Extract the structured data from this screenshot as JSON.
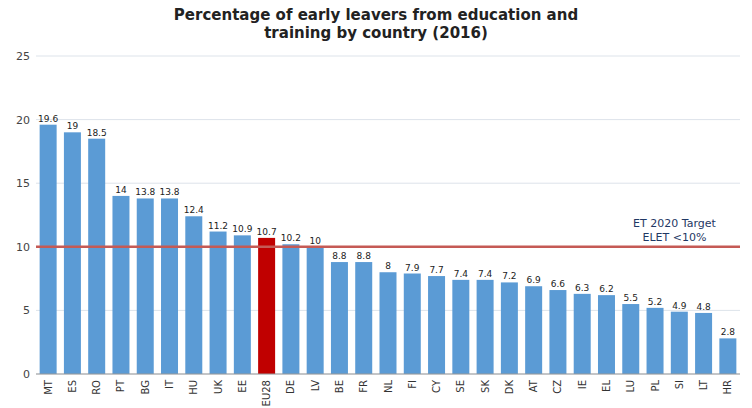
{
  "chart_data": {
    "type": "bar",
    "title": "Percentage of early leavers from education and\ntraining by country (2016)",
    "categories": [
      "MT",
      "ES",
      "RO",
      "PT",
      "BG",
      "IT",
      "HU",
      "UK",
      "EE",
      "EU28",
      "DE",
      "LV",
      "BE",
      "FR",
      "NL",
      "FI",
      "CY",
      "SE",
      "SK",
      "DK",
      "AT",
      "CZ",
      "IE",
      "EL",
      "LU",
      "PL",
      "SI",
      "LT",
      "HR"
    ],
    "values": [
      19.6,
      19.0,
      18.5,
      14.0,
      13.8,
      13.8,
      12.4,
      11.2,
      10.9,
      10.7,
      10.2,
      10.0,
      8.8,
      8.8,
      8.0,
      7.9,
      7.7,
      7.4,
      7.4,
      7.2,
      6.9,
      6.6,
      6.3,
      6.2,
      5.5,
      5.2,
      4.9,
      4.8,
      2.8
    ],
    "colors": [
      "#5B9BD5",
      "#5B9BD5",
      "#5B9BD5",
      "#5B9BD5",
      "#5B9BD5",
      "#5B9BD5",
      "#5B9BD5",
      "#5B9BD5",
      "#5B9BD5",
      "#C00000",
      "#5B9BD5",
      "#5B9BD5",
      "#5B9BD5",
      "#5B9BD5",
      "#5B9BD5",
      "#5B9BD5",
      "#5B9BD5",
      "#5B9BD5",
      "#5B9BD5",
      "#5B9BD5",
      "#5B9BD5",
      "#5B9BD5",
      "#5B9BD5",
      "#5B9BD5",
      "#5B9BD5",
      "#5B9BD5",
      "#5B9BD5",
      "#5B9BD5",
      "#5B9BD5"
    ],
    "ylim": [
      0,
      25
    ],
    "yticks": [
      0,
      5,
      10,
      15,
      20,
      25
    ],
    "grid": true,
    "data_labels": true,
    "annotations": [
      {
        "type": "hline",
        "value": 10.0,
        "color": "#C55A55",
        "label": [
          "ET 2020 Target",
          "ELET <10%"
        ],
        "label_color": "#1F3864"
      }
    ]
  }
}
